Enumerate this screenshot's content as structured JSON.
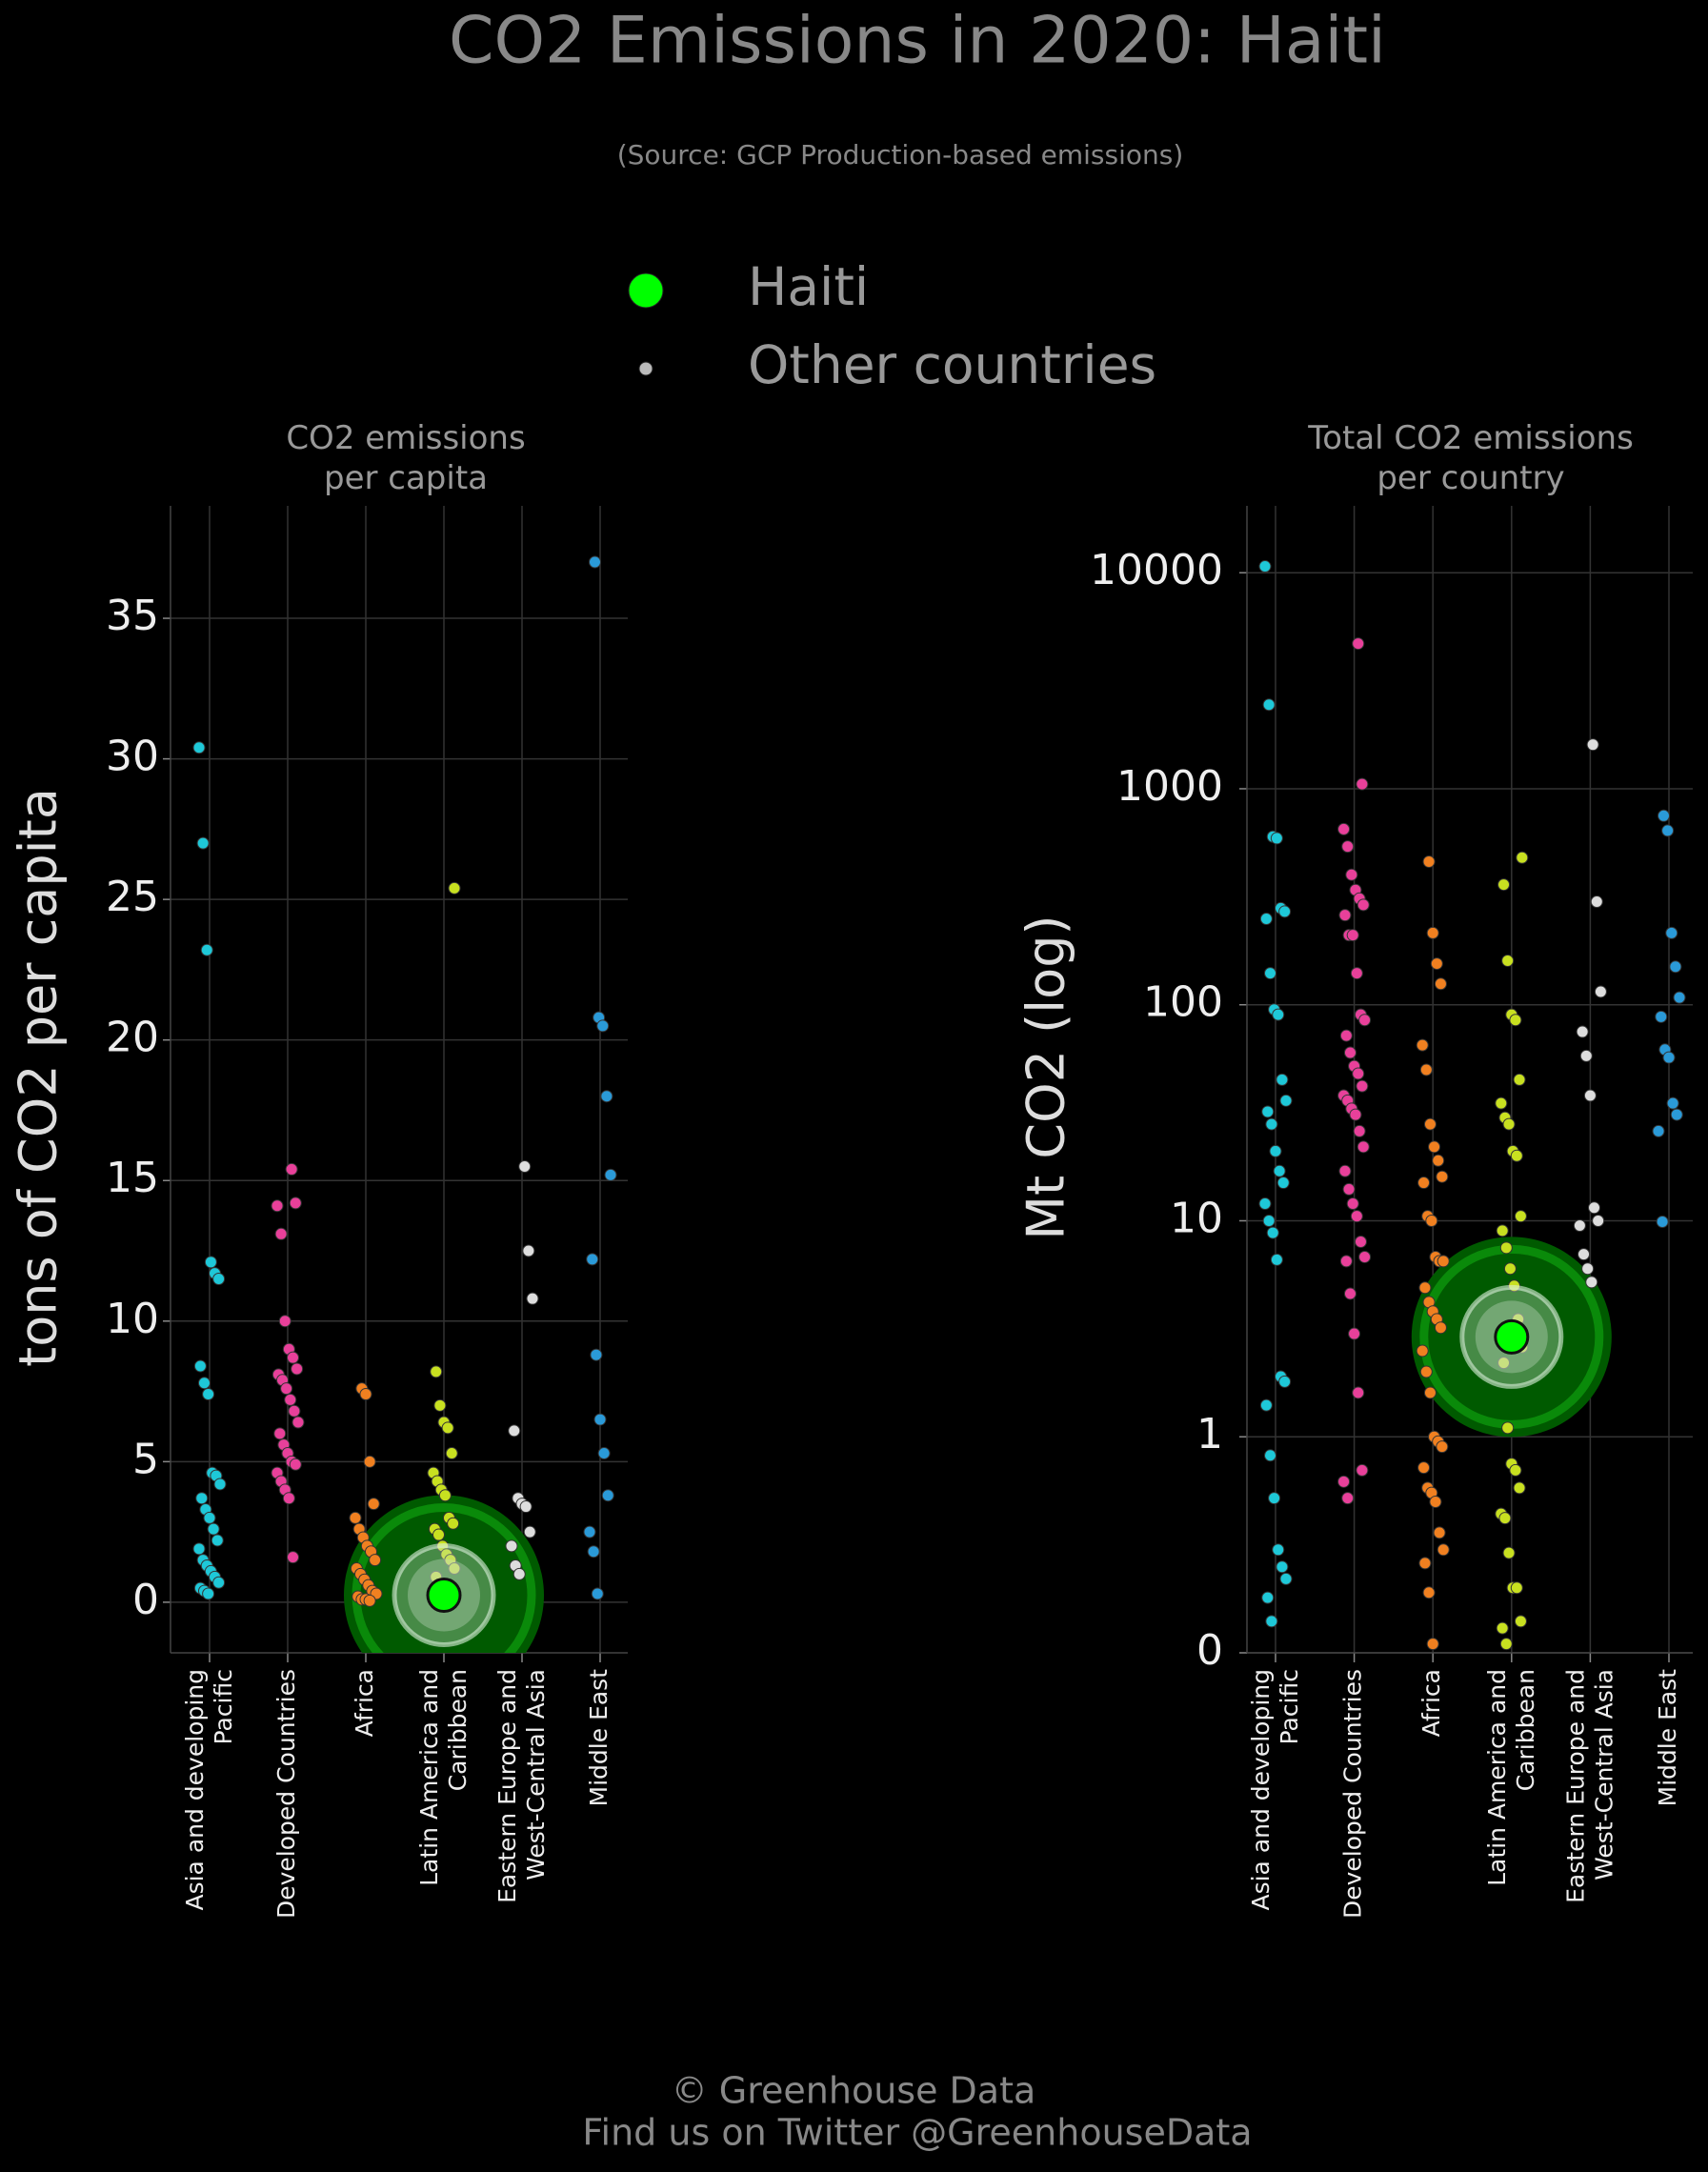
{
  "title": "CO2 Emissions in 2020: Haiti",
  "subtitle": "(Source: GCP Production-based emissions)",
  "legend": [
    {
      "name": "Haiti",
      "color": "#00ff00"
    },
    {
      "name": "Other countries",
      "color": "#bbbbbb"
    }
  ],
  "footer": [
    "© Greenhouse Data",
    "Find us on Twitter @GreenhouseData"
  ],
  "chart_data": [
    {
      "type": "strip",
      "title": "CO2 emissions\nper capita",
      "ylabel": "tons of CO2 per capita",
      "log": false,
      "ylim": [
        -1.8,
        39
      ],
      "yticks": [
        0,
        5,
        10,
        15,
        20,
        25,
        30,
        35
      ],
      "grid": true,
      "categories": [
        "Asia and developing\nPacific",
        "Developed Countries",
        "Africa",
        "Latin America and\nCaribbean",
        "Eastern Europe and\nWest-Central Asia",
        "Middle East"
      ],
      "colors": [
        "#1ec8d8",
        "#e8409a",
        "#f08020",
        "#c8e020",
        "#dddddd",
        "#2a9ad8"
      ],
      "values": [
        [
          30.4,
          27,
          23.2,
          12.1,
          11.7,
          11.5,
          8.4,
          7.8,
          7.4,
          4.6,
          4.5,
          4.2,
          3.7,
          3.3,
          3.0,
          2.6,
          2.2,
          1.9,
          1.5,
          1.3,
          1.1,
          0.9,
          0.7,
          0.5,
          0.4,
          0.3
        ],
        [
          15.4,
          14.2,
          14.1,
          13.1,
          10.0,
          9.0,
          8.7,
          8.3,
          8.1,
          7.9,
          7.6,
          7.2,
          6.8,
          6.4,
          6.0,
          5.6,
          5.3,
          5.0,
          4.9,
          4.6,
          4.3,
          4.0,
          3.7,
          1.6
        ],
        [
          7.6,
          7.4,
          5.0,
          3.5,
          3.0,
          2.6,
          2.3,
          2.0,
          1.8,
          1.5,
          1.2,
          1.0,
          0.8,
          0.6,
          0.4,
          0.3,
          0.2,
          0.1,
          0.1,
          0.05
        ],
        [
          25.4,
          8.2,
          7.0,
          6.4,
          6.2,
          5.3,
          4.6,
          4.3,
          4.0,
          3.8,
          3.0,
          2.8,
          2.6,
          2.4,
          2.0,
          1.7,
          1.5,
          1.2,
          0.9,
          0.6,
          0.3
        ],
        [
          15.5,
          12.5,
          10.8,
          6.1,
          3.7,
          3.5,
          3.4,
          2.5,
          2.0,
          1.3,
          1.0
        ],
        [
          37.0,
          20.8,
          20.5,
          18.0,
          15.2,
          12.2,
          8.8,
          6.5,
          5.3,
          3.8,
          2.5,
          1.8,
          0.3
        ]
      ],
      "highlight_index": 3,
      "highlight_value": 0.25
    },
    {
      "type": "strip",
      "title": "Total CO2 emissions\nper country",
      "ylabel": "Mt CO2 (log)",
      "log": true,
      "ylim": [
        0.1,
        20400
      ],
      "yticks": [
        {
          "value": 0.1,
          "label": "0"
        },
        1,
        10,
        100,
        1000,
        10000
      ],
      "grid": true,
      "categories": [
        "Asia and developing\nPacific",
        "Developed Countries",
        "Africa",
        "Latin America and\nCaribbean",
        "Eastern Europe and\nWest-Central Asia",
        "Middle East"
      ],
      "colors": [
        "#1ec8d8",
        "#e8409a",
        "#f08020",
        "#c8e020",
        "#dddddd",
        "#2a9ad8"
      ],
      "values": [
        [
          10700,
          2450,
          600,
          590,
          280,
          270,
          250,
          140,
          95,
          90,
          45,
          36,
          32,
          28,
          21,
          17,
          15,
          12,
          10,
          8.8,
          6.6,
          1.9,
          1.8,
          1.4,
          0.82,
          0.52,
          0.3,
          0.25,
          0.22,
          0.18,
          0.14
        ],
        [
          4700,
          1050,
          650,
          540,
          400,
          340,
          310,
          290,
          260,
          210,
          210,
          140,
          90,
          85,
          72,
          60,
          52,
          48,
          42,
          38,
          36,
          33,
          31,
          26,
          22,
          17,
          14,
          12,
          10.5,
          8,
          6.8,
          6.5,
          4.6,
          3.0,
          1.6,
          0.7,
          0.62,
          0.52
        ],
        [
          460,
          215,
          155,
          125,
          65,
          50,
          28,
          22,
          19,
          16,
          15,
          10.5,
          10,
          6.8,
          6.5,
          6.5,
          4.9,
          4.2,
          3.8,
          3.5,
          3.2,
          2.5,
          2.0,
          1.6,
          1.0,
          0.95,
          0.9,
          0.72,
          0.58,
          0.55,
          0.5,
          0.36,
          0.3,
          0.26,
          0.19,
          0.11
        ],
        [
          480,
          360,
          160,
          90,
          85,
          45,
          35,
          30,
          28,
          21,
          20,
          10.5,
          9,
          7.5,
          6,
          5,
          3.5,
          2.6,
          2.2,
          1.1,
          0.75,
          0.7,
          0.58,
          0.44,
          0.42,
          0.29,
          0.2,
          0.2,
          0.14,
          0.13,
          0.11
        ],
        [
          1600,
          300,
          115,
          75,
          58,
          38,
          11.5,
          10,
          9.5,
          7,
          6,
          5.2
        ],
        [
          750,
          640,
          215,
          150,
          108,
          88,
          62,
          57,
          35,
          31,
          26,
          9.9
        ]
      ],
      "highlight_index": 3,
      "highlight_value": 2.9
    }
  ]
}
